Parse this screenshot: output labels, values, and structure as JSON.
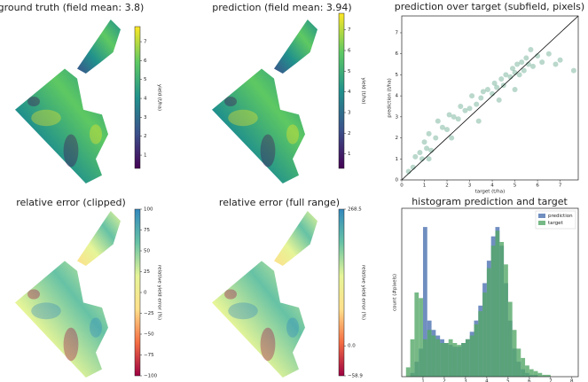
{
  "chart_data": [
    {
      "type": "map",
      "title": "ground truth (field mean: 3.8)",
      "palette": [
        "#440154",
        "#3b528b",
        "#21918c",
        "#5ec962",
        "#fde725"
      ],
      "colorbar": {
        "label": "yield (t/ha)",
        "lim": [
          0.3,
          7.8
        ],
        "ticks": [
          1,
          2,
          3,
          4,
          5,
          6,
          7
        ]
      }
    },
    {
      "type": "map",
      "title": "prediction (field mean: 3.94)",
      "palette": [
        "#440154",
        "#3b528b",
        "#21918c",
        "#5ec962",
        "#fde725"
      ],
      "colorbar": {
        "label": "yield (t/ha)",
        "lim": [
          0.3,
          7.8
        ],
        "ticks": [
          1,
          2,
          3,
          4,
          5,
          6,
          7
        ]
      }
    },
    {
      "type": "scatter",
      "title": "prediction over target (subfield, pixels)",
      "xlabel": "target (t/ha)",
      "ylabel": "prediction (t/ha)",
      "color": "#3a8f6e",
      "xlim": [
        0,
        7.8
      ],
      "ylim": [
        0,
        7.8
      ],
      "xticks": [
        0,
        1,
        2,
        3,
        4,
        5,
        6,
        7
      ],
      "yticks": [
        0,
        1,
        2,
        3,
        4,
        5,
        6,
        7
      ],
      "x": [
        0.3,
        0.5,
        0.6,
        0.8,
        0.9,
        1.0,
        1.1,
        1.2,
        1.3,
        1.5,
        1.6,
        1.8,
        2.0,
        2.1,
        2.3,
        2.5,
        2.6,
        2.8,
        3.0,
        3.1,
        3.3,
        3.5,
        3.6,
        3.8,
        4.0,
        4.1,
        4.2,
        4.4,
        4.5,
        4.6,
        4.8,
        4.9,
        5.0,
        5.1,
        5.2,
        5.3,
        5.4,
        5.5,
        5.6,
        5.8,
        6.0,
        6.2,
        6.5,
        6.8,
        7.0,
        7.6,
        1.2,
        2.2,
        3.4,
        4.3,
        5.0,
        5.7
      ],
      "y": [
        0.4,
        0.6,
        1.1,
        1.3,
        1.0,
        1.8,
        1.5,
        2.2,
        1.4,
        2.0,
        2.8,
        2.5,
        2.4,
        3.1,
        3.0,
        2.9,
        3.5,
        3.3,
        3.4,
        4.0,
        3.6,
        3.9,
        4.2,
        4.3,
        4.1,
        4.6,
        4.4,
        4.8,
        4.5,
        5.0,
        4.9,
        5.3,
        5.1,
        5.5,
        5.0,
        5.6,
        5.2,
        5.8,
        5.5,
        5.4,
        5.9,
        5.6,
        6.0,
        5.5,
        5.7,
        5.2,
        1.0,
        2.0,
        2.8,
        3.8,
        4.3,
        6.2
      ]
    },
    {
      "type": "map",
      "title": "relative error (clipped)",
      "palette": [
        "#9e0142",
        "#f46d43",
        "#fee08b",
        "#e6f598",
        "#66c2a5",
        "#3288bd"
      ],
      "colorbar": {
        "label": "relative yield error (%)",
        "lim": [
          -100,
          100
        ],
        "ticks": [
          {
            "value": -100,
            "label": "−100"
          },
          {
            "value": -75,
            "label": "−75"
          },
          {
            "value": -50,
            "label": "−50"
          },
          {
            "value": -25,
            "label": "−25"
          },
          0,
          25,
          50,
          75,
          100
        ]
      }
    },
    {
      "type": "map",
      "title": "relative error (full range)",
      "palette": [
        "#9e0142",
        "#f46d43",
        "#fee08b",
        "#e6f598",
        "#66c2a5",
        "#3288bd"
      ],
      "colorbar": {
        "label": "relative yield error (%)",
        "lim": [
          -58.9,
          268.5
        ],
        "ticks": [
          {
            "value": -58.9,
            "label": "−58.9"
          },
          {
            "value": 0,
            "label": "0.0"
          },
          268.5
        ]
      }
    },
    {
      "type": "histogram",
      "title": "histogram prediction and target",
      "ylabel": "count (#pixels)",
      "legend": "upper right",
      "xlim": [
        0,
        8.3
      ],
      "ylim": [
        0,
        90
      ],
      "xticks": [
        1,
        2,
        3,
        4,
        5,
        6,
        7,
        8
      ],
      "bins": [
        0.2,
        0.4,
        0.6,
        0.8,
        1.0,
        1.2,
        1.4,
        1.6,
        1.8,
        2.0,
        2.2,
        2.4,
        2.6,
        2.8,
        3.0,
        3.2,
        3.4,
        3.6,
        3.8,
        4.0,
        4.2,
        4.4,
        4.6,
        4.8,
        5.0,
        5.2,
        5.4,
        5.6,
        5.8,
        6.0,
        6.2,
        6.4,
        6.6,
        6.8,
        7.0,
        7.2,
        7.4,
        7.6,
        7.8,
        8.0,
        8.2
      ],
      "series": [
        {
          "name": "prediction",
          "color": "#4c72b0",
          "values": [
            0,
            2,
            8,
            15,
            80,
            30,
            25,
            22,
            20,
            18,
            17,
            16,
            16,
            18,
            20,
            24,
            30,
            38,
            50,
            62,
            75,
            80,
            70,
            50,
            30,
            15,
            8,
            4,
            2,
            1,
            1,
            0,
            0,
            0,
            0,
            0,
            0,
            0,
            0,
            0
          ]
        },
        {
          "name": "target",
          "color": "#55a868",
          "values": [
            5,
            20,
            45,
            42,
            20,
            25,
            22,
            20,
            18,
            18,
            20,
            18,
            17,
            18,
            20,
            22,
            28,
            35,
            45,
            58,
            70,
            78,
            72,
            60,
            40,
            25,
            15,
            10,
            6,
            4,
            3,
            2,
            1,
            1,
            0,
            0,
            0,
            0,
            0,
            0
          ]
        }
      ]
    }
  ]
}
